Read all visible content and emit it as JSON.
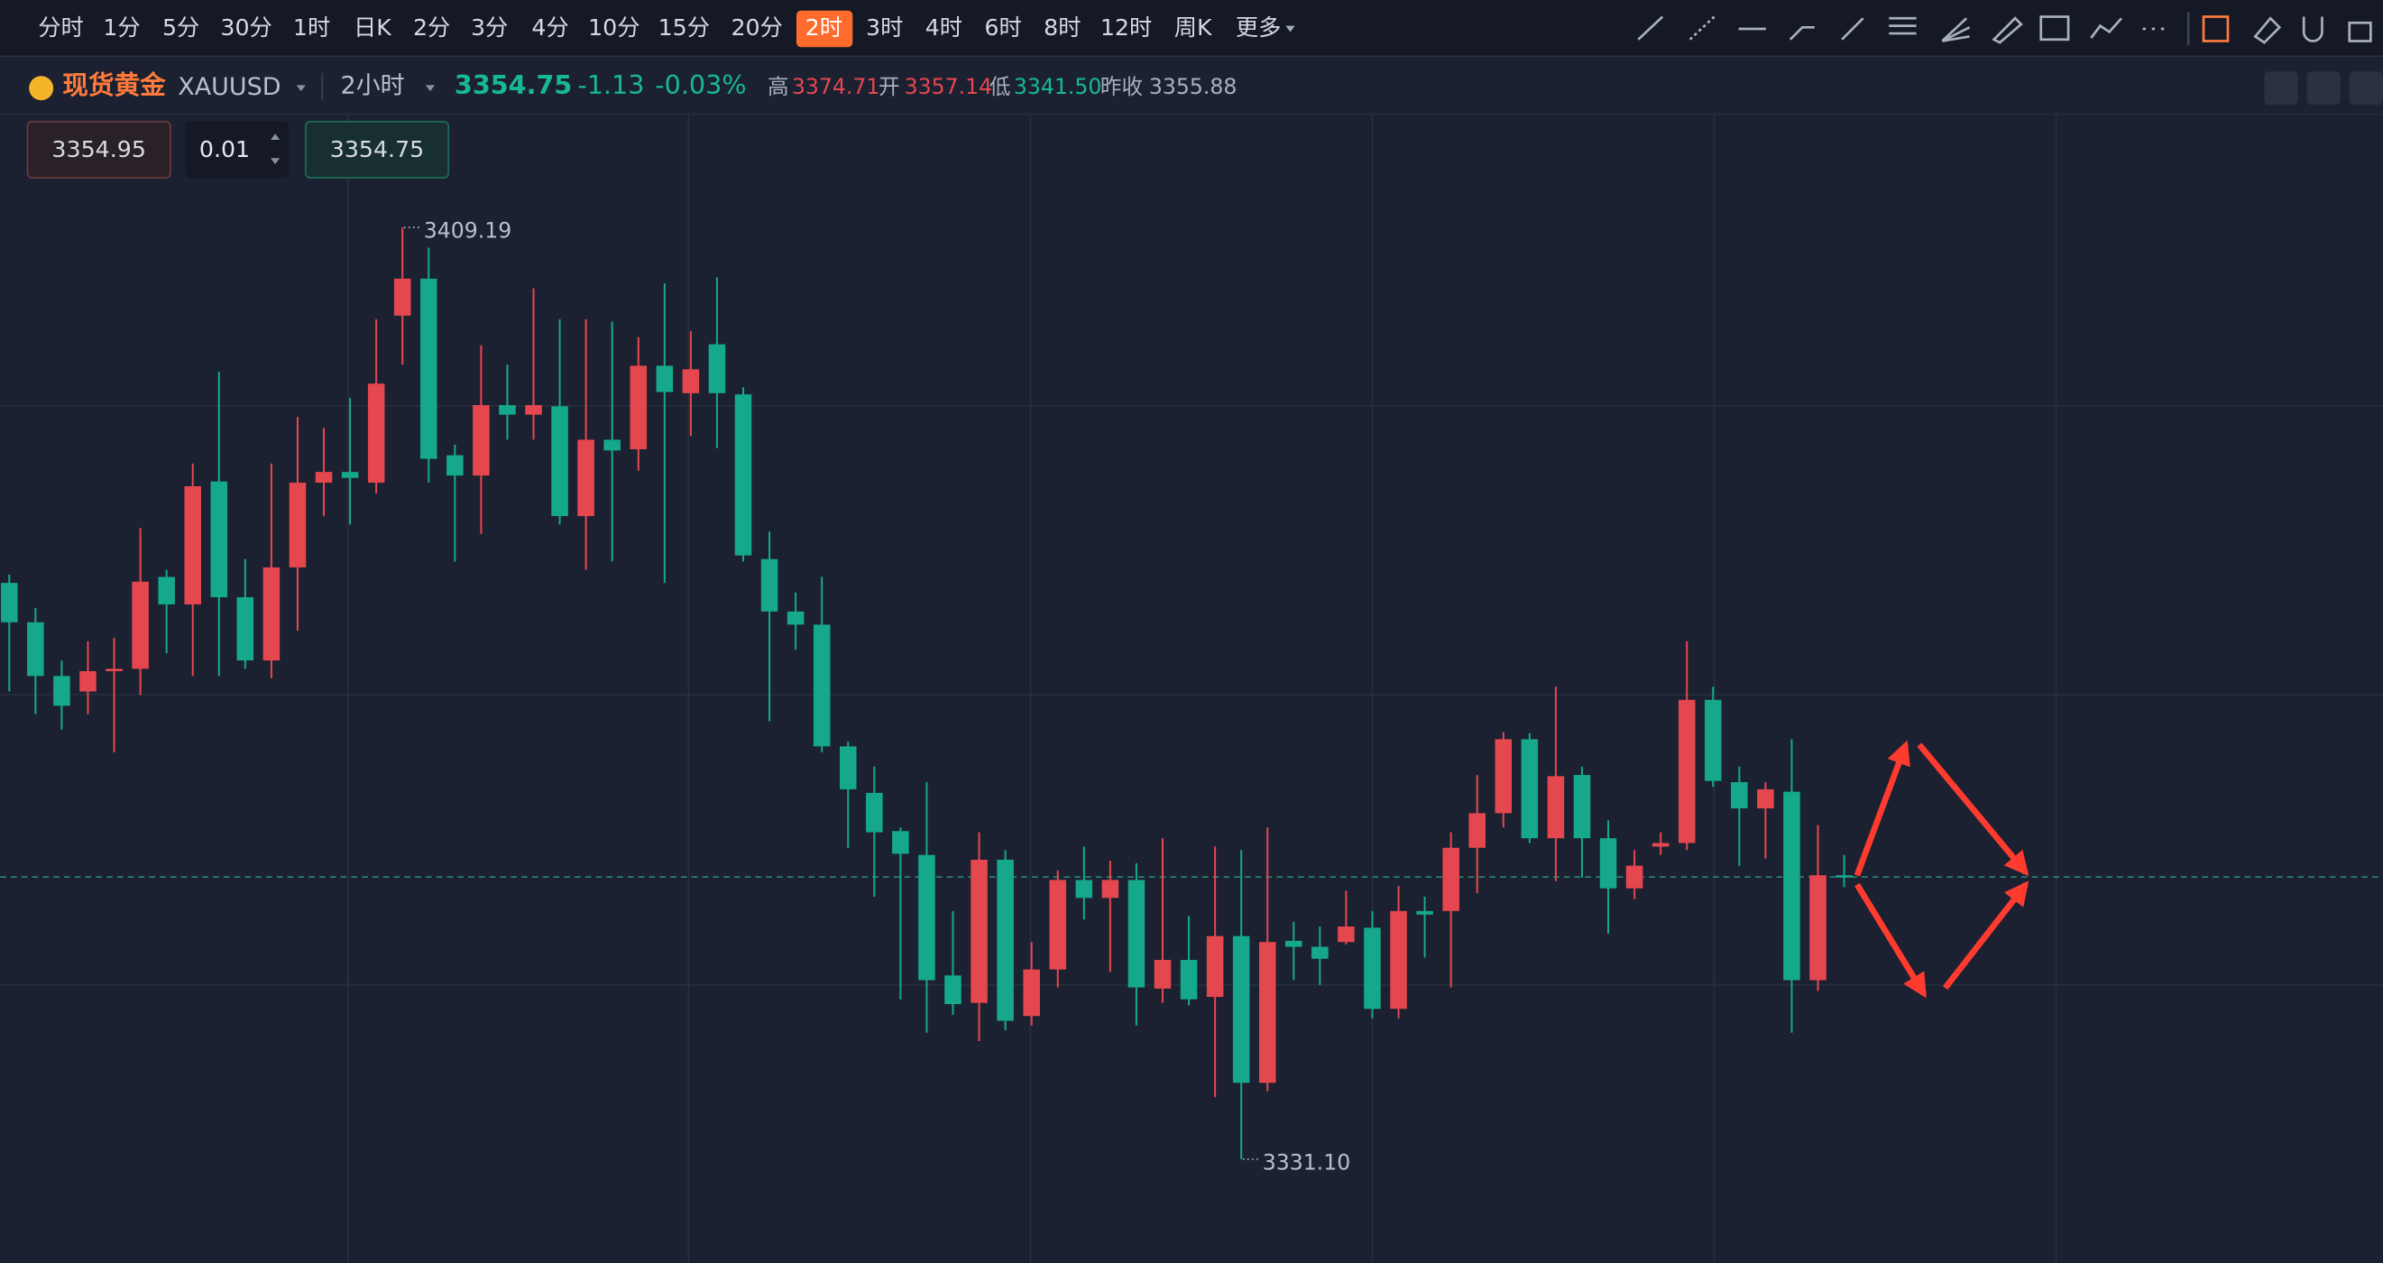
{
  "ui": {
    "toolbar": {
      "items": [
        "分时",
        "1分",
        "5分",
        "30分",
        "1时",
        "日K",
        "2分",
        "3分",
        "4分",
        "10分",
        "15分",
        "20分",
        "2时",
        "3时",
        "4时",
        "6时",
        "8时",
        "12时",
        "周K",
        "更多"
      ],
      "active_index": 12
    },
    "header": {
      "name": "现货黄金",
      "symbol": "XAUUSD",
      "period": "2小时",
      "price": "3354.75",
      "change": "-1.13",
      "change_pct": "-0.03%",
      "high_label": "高",
      "high": "3374.71",
      "open_label": "开",
      "open": "3357.14",
      "low_label": "低",
      "low": "3341.50",
      "prev_label": "昨收",
      "prev": "3355.88"
    },
    "order": {
      "sell": "3354.95",
      "lots": "0.01",
      "buy": "3354.75"
    }
  },
  "chart_data": {
    "type": "candlestick",
    "up_color": "#e5474f",
    "down_color": "#15a88c",
    "ylim": [
      3322.4,
      3418.7
    ],
    "price_line": 3354.75,
    "high_annotation": {
      "value": 3409.19,
      "label": "3409.19"
    },
    "low_annotation": {
      "value": 3331.1,
      "label": "3331.10"
    },
    "candles": [
      [
        3379.4,
        3380.1,
        3370.3,
        3376.1
      ],
      [
        3376.1,
        3377.3,
        3368.4,
        3371.6
      ],
      [
        3371.6,
        3372.9,
        3367.1,
        3369.1
      ],
      [
        3370.3,
        3374.5,
        3368.4,
        3372.0
      ],
      [
        3372.0,
        3374.8,
        3365.2,
        3372.2
      ],
      [
        3372.2,
        3384.0,
        3370.0,
        3379.5
      ],
      [
        3379.9,
        3380.5,
        3373.5,
        3377.6
      ],
      [
        3377.6,
        3389.4,
        3371.6,
        3387.5
      ],
      [
        3387.9,
        3397.1,
        3371.6,
        3378.2
      ],
      [
        3378.2,
        3381.4,
        3372.2,
        3372.9
      ],
      [
        3372.9,
        3389.4,
        3371.4,
        3380.7
      ],
      [
        3380.7,
        3393.3,
        3375.4,
        3387.8
      ],
      [
        3387.8,
        3392.4,
        3385.0,
        3388.7
      ],
      [
        3388.7,
        3394.9,
        3384.3,
        3388.2
      ],
      [
        3387.8,
        3401.5,
        3386.9,
        3396.1
      ],
      [
        3401.8,
        3409.19,
        3397.7,
        3404.9
      ],
      [
        3404.9,
        3407.5,
        3387.8,
        3389.8
      ],
      [
        3390.1,
        3391.0,
        3381.2,
        3388.4
      ],
      [
        3388.4,
        3399.3,
        3383.5,
        3394.3
      ],
      [
        3394.3,
        3397.7,
        3391.4,
        3393.5
      ],
      [
        3393.5,
        3404.1,
        3391.4,
        3394.3
      ],
      [
        3394.2,
        3401.5,
        3384.3,
        3385.0
      ],
      [
        3385.0,
        3401.5,
        3380.5,
        3391.4
      ],
      [
        3391.4,
        3401.3,
        3381.2,
        3390.5
      ],
      [
        3390.6,
        3400.0,
        3388.8,
        3397.6
      ],
      [
        3397.6,
        3404.5,
        3379.4,
        3395.4
      ],
      [
        3395.3,
        3400.5,
        3391.7,
        3397.3
      ],
      [
        3399.4,
        3405.0,
        3390.7,
        3395.3
      ],
      [
        3395.2,
        3395.8,
        3381.2,
        3381.7
      ],
      [
        3381.4,
        3383.7,
        3367.8,
        3377.0
      ],
      [
        3377.0,
        3378.6,
        3373.8,
        3375.9
      ],
      [
        3375.9,
        3379.9,
        3365.2,
        3365.7
      ],
      [
        3365.7,
        3366.1,
        3357.2,
        3362.1
      ],
      [
        3361.8,
        3364.0,
        3353.1,
        3358.5
      ],
      [
        3358.6,
        3358.9,
        3344.5,
        3356.7
      ],
      [
        3356.6,
        3362.7,
        3341.7,
        3346.1
      ],
      [
        3346.5,
        3351.9,
        3343.2,
        3344.1
      ],
      [
        3344.2,
        3358.5,
        3341.0,
        3356.2
      ],
      [
        3356.2,
        3357.0,
        3341.9,
        3342.7
      ],
      [
        3343.1,
        3349.3,
        3342.3,
        3347.0
      ],
      [
        3347.0,
        3355.3,
        3345.5,
        3354.5
      ],
      [
        3354.5,
        3357.3,
        3351.2,
        3353.0
      ],
      [
        3353.0,
        3356.1,
        3346.8,
        3354.5
      ],
      [
        3354.5,
        3355.9,
        3342.3,
        3345.5
      ],
      [
        3345.4,
        3358.0,
        3344.2,
        3347.8
      ],
      [
        3347.8,
        3351.5,
        3344.0,
        3344.5
      ],
      [
        3344.7,
        3357.3,
        3336.3,
        3349.8
      ],
      [
        3349.8,
        3357.0,
        3331.1,
        3337.5
      ],
      [
        3337.5,
        3358.9,
        3336.8,
        3349.3
      ],
      [
        3349.4,
        3351.0,
        3346.1,
        3348.9
      ],
      [
        3348.9,
        3350.6,
        3345.7,
        3347.9
      ],
      [
        3349.3,
        3353.6,
        3349.1,
        3350.6
      ],
      [
        3350.5,
        3351.9,
        3342.9,
        3343.7
      ],
      [
        3343.7,
        3354.0,
        3342.9,
        3351.9
      ],
      [
        3351.9,
        3353.1,
        3348.0,
        3351.6
      ],
      [
        3351.9,
        3358.5,
        3345.5,
        3357.2
      ],
      [
        3357.2,
        3363.3,
        3353.4,
        3360.1
      ],
      [
        3360.1,
        3366.9,
        3358.9,
        3366.3
      ],
      [
        3366.3,
        3366.8,
        3357.6,
        3358.0
      ],
      [
        3358.0,
        3370.7,
        3354.4,
        3363.2
      ],
      [
        3363.3,
        3364.0,
        3354.7,
        3358.0
      ],
      [
        3358.0,
        3359.5,
        3350.0,
        3353.8
      ],
      [
        3353.8,
        3357.0,
        3352.9,
        3355.7
      ],
      [
        3357.3,
        3358.5,
        3356.6,
        3357.6
      ],
      [
        3357.6,
        3374.5,
        3357.0,
        3369.6
      ],
      [
        3369.6,
        3370.7,
        3362.3,
        3362.8
      ],
      [
        3362.7,
        3364.0,
        3355.7,
        3360.5
      ],
      [
        3360.5,
        3362.7,
        3356.3,
        3362.1
      ],
      [
        3361.9,
        3366.3,
        3341.7,
        3346.1
      ],
      [
        3346.1,
        3359.1,
        3345.2,
        3354.9
      ],
      [
        3354.9,
        3356.6,
        3353.9,
        3354.75
      ]
    ]
  }
}
